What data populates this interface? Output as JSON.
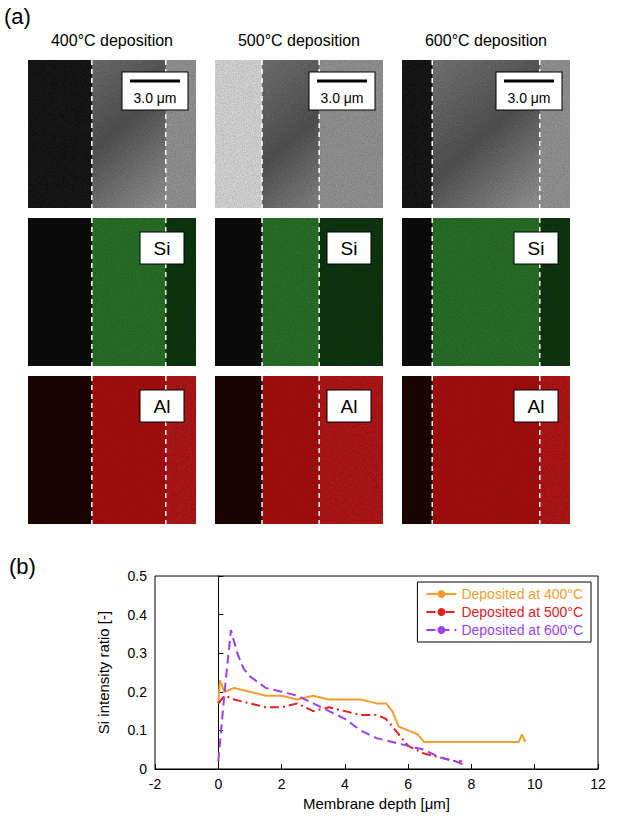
{
  "panel_a": {
    "label": "(a)",
    "columns": [
      {
        "title": "400°C deposition",
        "scale_bar": "3.0 μm",
        "maps": [
          "Si",
          "Al"
        ]
      },
      {
        "title": "500°C deposition",
        "scale_bar": "3.0 μm",
        "maps": [
          "Si",
          "Al"
        ]
      },
      {
        "title": "600°C deposition",
        "scale_bar": "3.0 μm",
        "maps": [
          "Si",
          "Al"
        ]
      }
    ]
  },
  "panel_b": {
    "label": "(b)"
  },
  "chart_data": {
    "type": "line",
    "x_label": "Membrane depth [μm]",
    "y_label": "Si intensity ratio [-]",
    "xlim": [
      -2,
      12
    ],
    "xticks": [
      -2,
      0,
      2,
      4,
      6,
      8,
      10,
      12
    ],
    "ylim": [
      0,
      0.5
    ],
    "yticks": [
      0,
      0.1,
      0.2,
      0.3,
      0.4,
      0.5
    ],
    "grid": false,
    "legend": "top-right",
    "series": [
      {
        "name": "Deposited at 400°C",
        "color": "#f39c32",
        "line_style": "solid",
        "x": [
          0,
          0.05,
          0.2,
          0.5,
          1,
          1.5,
          2,
          2.5,
          3,
          3.5,
          4,
          4.5,
          5,
          5.3,
          5.5,
          5.7,
          6,
          6.3,
          6.5,
          7,
          8,
          9,
          9.5,
          9.6,
          9.7
        ],
        "values": [
          0.17,
          0.23,
          0.2,
          0.21,
          0.2,
          0.19,
          0.19,
          0.18,
          0.19,
          0.18,
          0.18,
          0.18,
          0.17,
          0.17,
          0.15,
          0.11,
          0.1,
          0.09,
          0.07,
          0.07,
          0.07,
          0.07,
          0.07,
          0.09,
          0.07
        ]
      },
      {
        "name": "Deposited at 500°C",
        "color": "#e4201f",
        "line_style": "dashdot",
        "x": [
          0,
          0.2,
          0.5,
          1,
          1.5,
          2,
          2.5,
          3,
          3.5,
          4,
          4.5,
          5,
          5.3,
          5.6,
          6,
          6.5,
          7,
          7.5,
          7.7
        ],
        "values": [
          0.17,
          0.19,
          0.18,
          0.17,
          0.16,
          0.16,
          0.17,
          0.15,
          0.16,
          0.15,
          0.14,
          0.14,
          0.13,
          0.1,
          0.06,
          0.04,
          0.03,
          0.02,
          0.02
        ]
      },
      {
        "name": "Deposited at 600°C",
        "color": "#9b3ff0",
        "line_style": "dashed",
        "x": [
          0,
          0.2,
          0.4,
          0.6,
          0.8,
          1,
          1.5,
          2,
          2.5,
          3,
          3.5,
          4,
          4.5,
          5,
          5.5,
          6,
          6.5,
          7,
          7.5,
          7.8
        ],
        "values": [
          0.02,
          0.2,
          0.36,
          0.3,
          0.26,
          0.24,
          0.21,
          0.2,
          0.19,
          0.17,
          0.15,
          0.13,
          0.1,
          0.08,
          0.07,
          0.06,
          0.05,
          0.03,
          0.02,
          0.01
        ]
      }
    ]
  }
}
